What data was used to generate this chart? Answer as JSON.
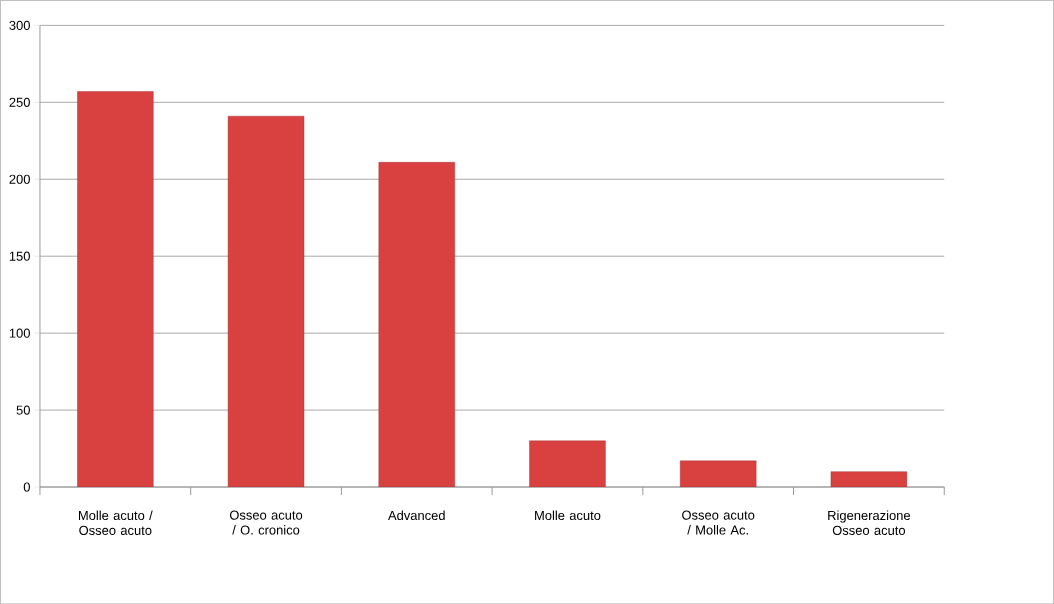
{
  "chart_data": {
    "type": "bar",
    "categories": [
      "Molle acuto / Osseo acuto",
      "Osseo acuto / O. cronico",
      "Advanced",
      "Molle acuto",
      "Osseo acuto / Molle Ac.",
      "Rigenerazione Osseo acuto"
    ],
    "values": [
      257,
      241,
      211,
      30,
      17,
      10
    ],
    "color": "#d94141",
    "ylim": [
      0,
      300
    ],
    "yticks": [
      0,
      50,
      100,
      150,
      200,
      250,
      300
    ],
    "grid": "y"
  }
}
